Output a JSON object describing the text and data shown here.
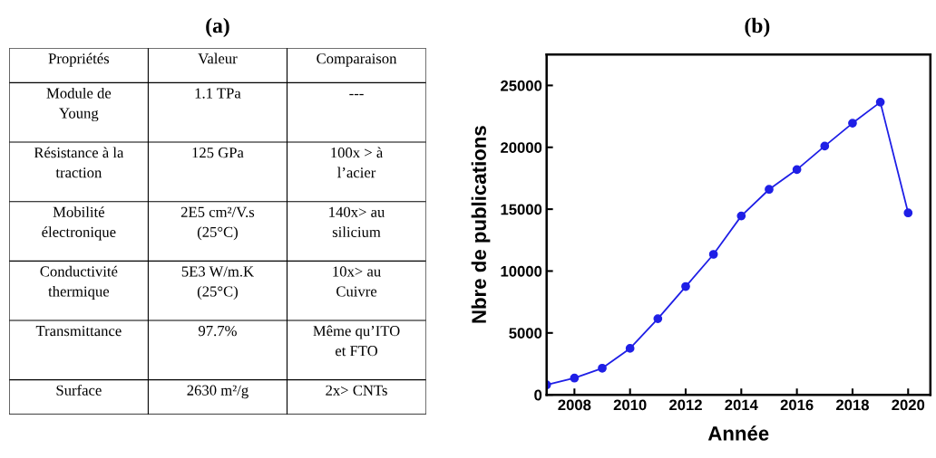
{
  "chart_data": [
    {
      "type": "other",
      "title": "(a)",
      "categories": [
        "Propriétés",
        "Valeur",
        "Comparaison"
      ],
      "annotations": [
        "Module de\nYoung",
        "1.1 TPa",
        "---",
        "Résistance à la\ntraction",
        "125 GPa",
        "100x > à\nl’acier",
        "Mobilité\nélectronique",
        "2E5 cm²/V.s\n(25°C)",
        "140x> au\nsilicium",
        "Conductivité\nthermique",
        "5E3 W/m.K\n(25°C)",
        "10x> au\nCuivre",
        "Transmittance",
        "97.7%",
        "Même qu’ITO\net FTO",
        "Surface",
        "2630 m²/g",
        "2x> CNTs"
      ]
    },
    {
      "type": "line",
      "title": "(b)",
      "xlabel": "Année",
      "ylabel": "Nbre de publications",
      "x": [
        2007,
        2008,
        2009,
        2010,
        2011,
        2012,
        2013,
        2014,
        2015,
        2016,
        2017,
        2018,
        2019,
        2020
      ],
      "series": [
        {
          "color": "#1f1fe6",
          "values": [
            800,
            1350,
            2150,
            3750,
            6150,
            8750,
            11350,
            14450,
            16600,
            18200,
            20100,
            21950,
            23650,
            14700
          ]
        }
      ],
      "xlim": [
        2007,
        2020.8
      ],
      "xticks": [
        2008,
        2010,
        2012,
        2014,
        2016,
        2018,
        2020
      ],
      "ylim": [
        0,
        27500
      ],
      "yticks": [
        0,
        5000,
        10000,
        15000,
        20000,
        25000
      ],
      "marker": "circle",
      "line_style": "solid",
      "grid": false
    }
  ]
}
